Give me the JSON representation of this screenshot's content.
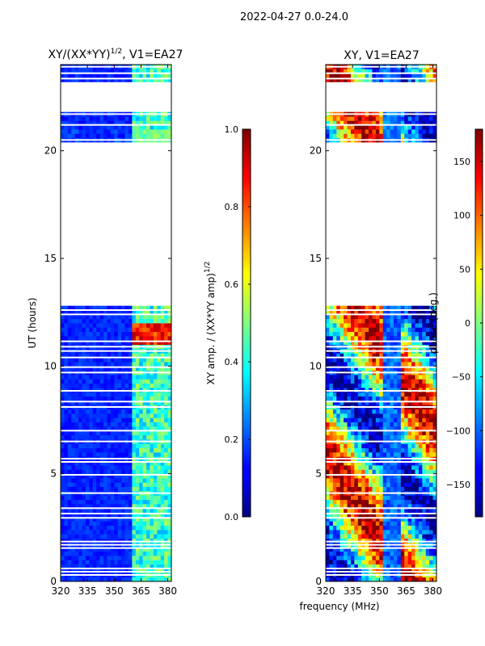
{
  "suptitle": "2022-04-27 0.0-24.0",
  "shared_xlabel": "frequency (MHz)",
  "chart_data": [
    {
      "type": "heatmap",
      "title": "XY/(XX*YY)^1/2, V1=EA27",
      "title_main": "XY/(XX*YY)",
      "title_sup": "1/2",
      "title_rest": ", V1=EA27",
      "xlabel": "",
      "ylabel": "UT (hours)",
      "x_ticks": [
        320,
        335,
        350,
        365,
        380
      ],
      "x_tick_labels": [
        "320",
        "335",
        "350",
        "365",
        "380"
      ],
      "xlim": [
        320,
        382
      ],
      "y_ticks": [
        0,
        5,
        10,
        15,
        20
      ],
      "y_tick_labels": [
        "0",
        "5",
        "10",
        "15",
        "20"
      ],
      "ylim": [
        0,
        24
      ],
      "colorbar": {
        "label": "XY amp. / (XX*YY amp)^1/2",
        "label_main": "XY amp. / (XX*YY amp)",
        "label_sup": "1/2",
        "range": [
          0.0,
          1.0
        ],
        "ticks": [
          0.0,
          0.2,
          0.4,
          0.6,
          0.8,
          1.0
        ],
        "tick_labels": [
          "0.0",
          "0.2",
          "0.4",
          "0.6",
          "0.8",
          "1.0"
        ],
        "colormap": "jet"
      },
      "blank_ut_intervals": [
        [
          19.6,
          20.4
        ],
        [
          12.8,
          19.5
        ],
        [
          21.9,
          23.2
        ]
      ],
      "bright_freq_bands_mhz": [
        [
          361,
          365
        ],
        [
          367,
          371
        ],
        [
          371,
          375
        ],
        [
          377,
          381
        ]
      ],
      "bright_patch_ut": [
        11.1,
        12.0
      ]
    },
    {
      "type": "heatmap",
      "title": "XY, V1=EA27",
      "xlabel": "frequency (MHz)",
      "ylabel": "",
      "x_ticks": [
        320,
        335,
        350,
        365,
        380
      ],
      "x_tick_labels": [
        "320",
        "335",
        "350",
        "365",
        "380"
      ],
      "xlim": [
        320,
        382
      ],
      "y_ticks": [
        0,
        5,
        10,
        15,
        20
      ],
      "y_tick_labels": [
        "0",
        "5",
        "10",
        "15",
        "20"
      ],
      "ylim": [
        0,
        24
      ],
      "colorbar": {
        "label": "phase (deg.)",
        "range": [
          -180,
          180
        ],
        "ticks": [
          -150,
          -100,
          -50,
          0,
          50,
          100,
          150
        ],
        "tick_labels": [
          "−150",
          "−100",
          "−50",
          "0",
          "50",
          "100",
          "150"
        ],
        "colormap": "jet"
      },
      "blank_ut_intervals": [
        [
          19.6,
          20.4
        ],
        [
          12.8,
          19.5
        ],
        [
          21.9,
          23.2
        ]
      ]
    }
  ],
  "ut_flag_lines": [
    0.3,
    0.45,
    0.6,
    1.55,
    1.7,
    1.85,
    2.95,
    3.15,
    3.4,
    4.1,
    4.95,
    5.55,
    5.7,
    6.5,
    7.0,
    8.1,
    8.35,
    8.85,
    9.7,
    9.95,
    10.4,
    10.7,
    10.9,
    11.15,
    12.4,
    12.6,
    20.5,
    21.2,
    21.7,
    23.35,
    23.6,
    23.9
  ]
}
